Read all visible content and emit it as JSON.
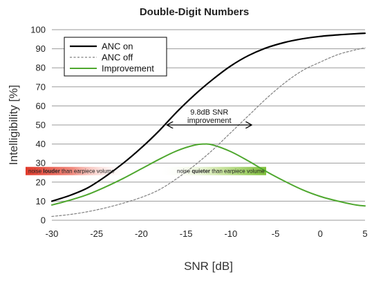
{
  "chart_data": {
    "type": "line",
    "title": "Double-Digit Numbers",
    "xlabel": "SNR [dB]",
    "ylabel": "Intelligibility [%]",
    "xlim": [
      -30,
      5
    ],
    "ylim": [
      0,
      100
    ],
    "xticks": [
      -30,
      -25,
      -20,
      -15,
      -10,
      -5,
      0,
      5
    ],
    "yticks": [
      0,
      10,
      20,
      30,
      40,
      50,
      60,
      70,
      80,
      90,
      100
    ],
    "grid": "horizontal",
    "legend_position": "top-left",
    "colors": {
      "anc_on": "#000000",
      "anc_off": "#7f7f7f",
      "improvement": "#4ea72e",
      "band_red": "#e03a2b",
      "band_green": "#8cc43c"
    },
    "series": [
      {
        "name": "ANC on",
        "style": "solid",
        "x": [
          -30,
          -28,
          -26,
          -24,
          -22,
          -20,
          -18,
          -16,
          -14,
          -12,
          -10,
          -8,
          -6,
          -4,
          -2,
          0,
          2,
          4,
          5
        ],
        "y": [
          10,
          13,
          17,
          23,
          30,
          38,
          47,
          57,
          66,
          74,
          81,
          86.5,
          90.5,
          93.3,
          95.2,
          96.5,
          97.3,
          97.9,
          98.1
        ]
      },
      {
        "name": "ANC off",
        "style": "dashed",
        "x": [
          -30,
          -28,
          -26,
          -24,
          -22,
          -20,
          -18,
          -16,
          -14,
          -12,
          -10,
          -8,
          -6,
          -4,
          -2,
          0,
          2,
          4,
          5
        ],
        "y": [
          2,
          3,
          4.5,
          6.5,
          9,
          12,
          16,
          22,
          29,
          37,
          46,
          55,
          64,
          72,
          78.5,
          83,
          87,
          89.5,
          90.5
        ]
      },
      {
        "name": "Improvement",
        "style": "solid",
        "x": [
          -30,
          -28,
          -26,
          -24,
          -22,
          -20,
          -18,
          -16,
          -14,
          -13,
          -12,
          -10,
          -8,
          -6,
          -4,
          -2,
          0,
          2,
          4,
          5
        ],
        "y": [
          8,
          10.5,
          13.5,
          17.5,
          22,
          27,
          32,
          36.5,
          39.5,
          40,
          39.5,
          36,
          31,
          25.5,
          20.5,
          16,
          12.5,
          10,
          8,
          7.5
        ]
      }
    ],
    "annotations": {
      "arrow_label_line1": "9.8dB SNR",
      "arrow_label_line2": "improvement",
      "arrow_y": 50,
      "arrow_x_from": -17.3,
      "arrow_x_to": -7.5,
      "band_left": {
        "pre": "noise ",
        "bold": "louder",
        "post": " than earpiece volume"
      },
      "band_right": {
        "pre": "noise ",
        "bold": "quieter",
        "post": " than earpiece volume"
      }
    }
  }
}
